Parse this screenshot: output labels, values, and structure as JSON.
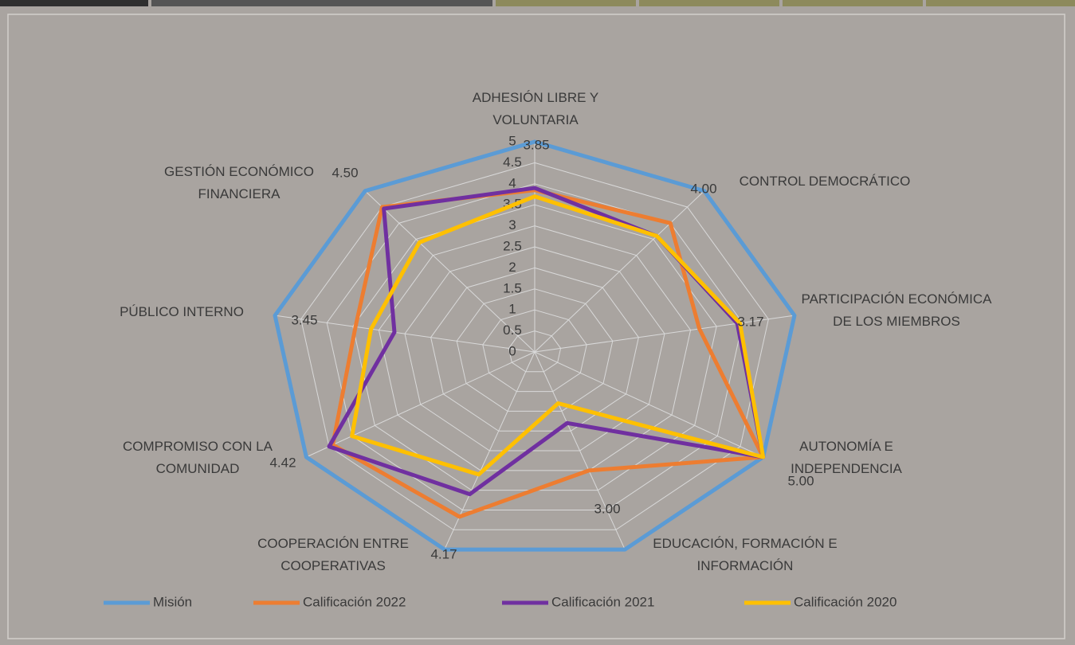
{
  "chart_data": {
    "type": "radar",
    "categories": [
      "ADHESIÓN LIBRE Y VOLUNTARIA",
      "CONTROL DEMOCRÁTICO",
      "PARTICIPACIÓN ECONÓMICA DE LOS MIEMBROS",
      "AUTONOMÍA E INDEPENDENCIA",
      "EDUCACIÓN, FORMACIÓN E INFORMACIÓN",
      "COOPERACIÓN ENTRE COOPERATIVAS",
      "COMPROMISO CON LA COMUNIDAD",
      "PÚBLICO INTERNO",
      "GESTIÓN ECONÓMICO FINANCIERA"
    ],
    "rlim": [
      0,
      5
    ],
    "rticks": [
      0,
      0.5,
      1,
      1.5,
      2,
      2.5,
      3,
      3.5,
      4,
      4.5,
      5
    ],
    "grid": true,
    "legend": "bottom",
    "series": [
      {
        "name": "Misión",
        "color": "#5b9bd5",
        "values": [
          5,
          5,
          5,
          5,
          5,
          5,
          5,
          5,
          5
        ]
      },
      {
        "name": "Calificación 2022",
        "color": "#ed7d31",
        "values": [
          3.85,
          4,
          3.17,
          5,
          3,
          4.17,
          4.42,
          3.45,
          4.5
        ],
        "value_labels": [
          "3.85",
          "4.00",
          "3.17",
          "5.00",
          "3.00",
          "4.17",
          "4.42",
          "3.45",
          "4.50"
        ]
      },
      {
        "name": "Calificación 2021",
        "color": "#7030a0",
        "values": [
          3.9,
          3.6,
          3.9,
          5,
          1.8,
          3.6,
          4.5,
          2.7,
          4.45
        ]
      },
      {
        "name": "Calificación 2020",
        "color": "#ffc000",
        "values": [
          3.7,
          3.6,
          3.95,
          5,
          1.3,
          3.1,
          4.0,
          3.15,
          3.4
        ]
      }
    ]
  }
}
